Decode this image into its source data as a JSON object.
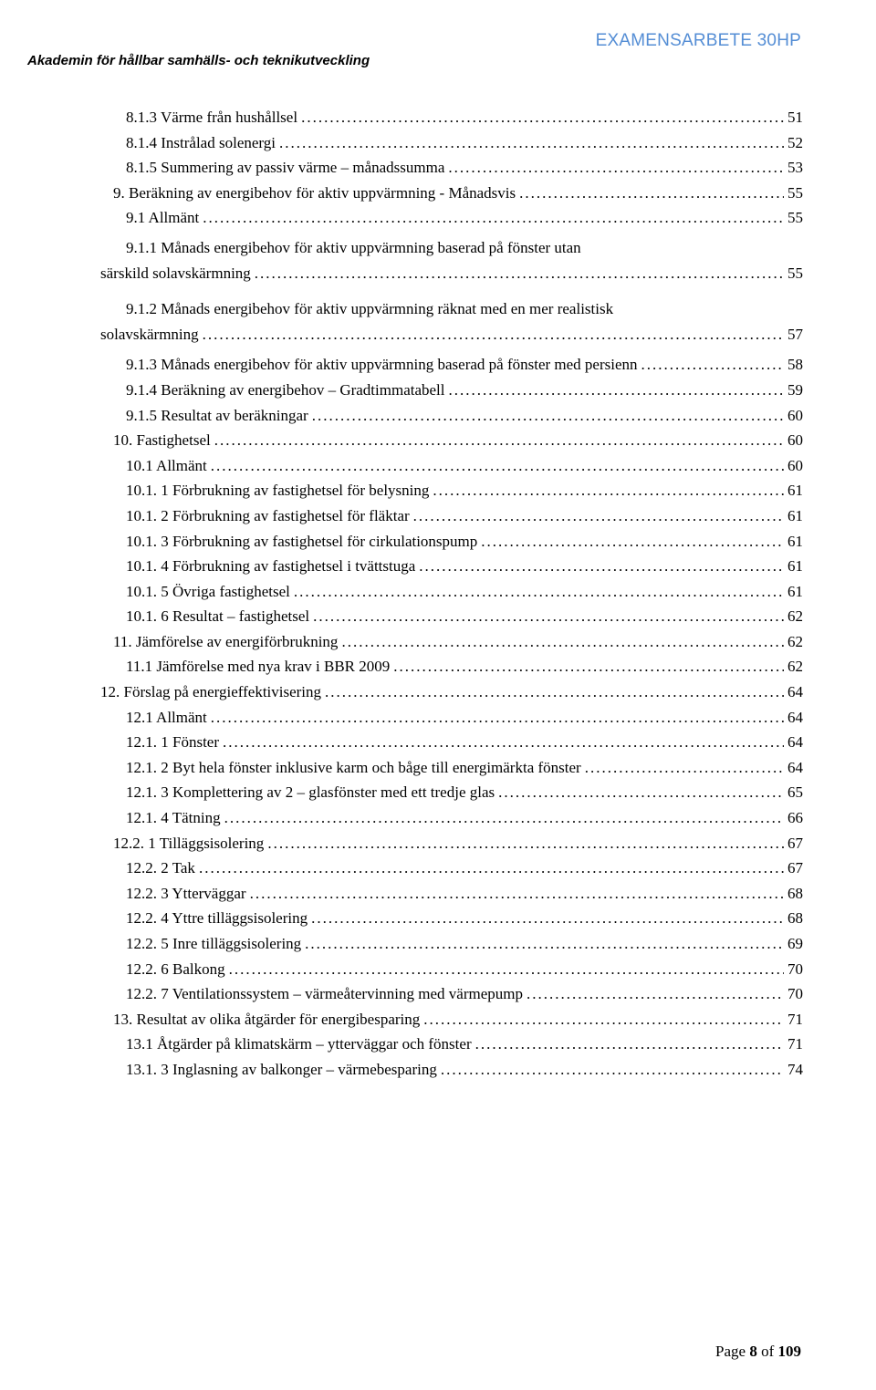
{
  "header": {
    "left": "Akademin för hållbar samhälls- och teknikutveckling",
    "right": "EXAMENSARBETE 30HP"
  },
  "toc": [
    {
      "indent": "ind-1",
      "label": "8.1.3 Värme från hushållsel",
      "page": "51"
    },
    {
      "indent": "ind-1",
      "label": "8.1.4 Instrålad solenergi",
      "page": "52"
    },
    {
      "indent": "ind-1",
      "label": "8.1.5 Summering av passiv värme – månadssumma",
      "page": "53"
    },
    {
      "indent": "ind-0c",
      "label": "9.    Beräkning av energibehov för aktiv uppvärmning - Månadsvis",
      "page": "55"
    },
    {
      "indent": "ind-1",
      "label": "9.1 Allmänt",
      "page": "55"
    },
    {
      "indent": "ind-1",
      "label": "9.1.1 Månads energibehov för aktiv uppvärmning baserad på fönster utan särskild solavskärmning",
      "page": "55",
      "wrap": true
    },
    {
      "indent": "ind-1",
      "label": "9.1.2 Månads energibehov för aktiv uppvärmning räknat med en mer realistisk solavskärmning",
      "page": "57",
      "wrap": true,
      "dropLeader": true
    },
    {
      "indent": "ind-1",
      "label": "9.1.3 Månads energibehov för aktiv uppvärmning baserad på fönster med persienn",
      "page": "58"
    },
    {
      "indent": "ind-1",
      "label": "9.1.4 Beräkning av energibehov – Gradtimmatabell",
      "page": "59"
    },
    {
      "indent": "ind-1",
      "label": "9.1.5 Resultat av beräkningar",
      "page": "60"
    },
    {
      "indent": "ind-0c",
      "label": "10.     Fastighetsel",
      "page": "60"
    },
    {
      "indent": "ind-1",
      "label": "10.1 Allmänt",
      "page": "60"
    },
    {
      "indent": "ind-1",
      "label": "10.1. 1 Förbrukning av fastighetsel för belysning",
      "page": "61"
    },
    {
      "indent": "ind-1",
      "label": "10.1. 2 Förbrukning av fastighetsel för fläktar",
      "page": "61"
    },
    {
      "indent": "ind-1",
      "label": "10.1. 3 Förbrukning av fastighetsel för cirkulationspump",
      "page": "61"
    },
    {
      "indent": "ind-1",
      "label": "10.1. 4 Förbrukning av fastighetsel i tvättstuga",
      "page": "61"
    },
    {
      "indent": "ind-1",
      "label": "10.1. 5 Övriga fastighetsel",
      "page": "61"
    },
    {
      "indent": "ind-1",
      "label": "10.1. 6 Resultat – fastighetsel",
      "page": "62"
    },
    {
      "indent": "ind-0c",
      "label": "11.     Jämförelse av energiförbrukning",
      "page": "62"
    },
    {
      "indent": "ind-1",
      "label": "11.1 Jämförelse med nya krav i BBR 2009",
      "page": "62"
    },
    {
      "indent": "ind-top",
      "label": "12.    Förslag på energieffektivisering",
      "page": "64"
    },
    {
      "indent": "ind-1",
      "label": "12.1 Allmänt",
      "page": "64"
    },
    {
      "indent": "ind-1",
      "label": "12.1. 1 Fönster",
      "page": "64"
    },
    {
      "indent": "ind-1",
      "label": "12.1. 2 Byt hela fönster inklusive karm och båge till energimärkta fönster",
      "page": "64"
    },
    {
      "indent": "ind-1",
      "label": "12.1. 3 Komplettering av 2 – glasfönster med ett tredje glas",
      "page": "65"
    },
    {
      "indent": "ind-1",
      "label": "12.1. 4 Tätning",
      "page": "66"
    },
    {
      "indent": "ind-0c",
      "label": "12.2. 1 Tilläggsisolering",
      "page": "67"
    },
    {
      "indent": "ind-1",
      "label": "12.2. 2 Tak",
      "page": "67"
    },
    {
      "indent": "ind-1",
      "label": "12.2. 3 Ytterväggar",
      "page": "68"
    },
    {
      "indent": "ind-1",
      "label": "12.2. 4 Yttre tilläggsisolering",
      "page": "68"
    },
    {
      "indent": "ind-1",
      "label": "12.2. 5 Inre tilläggsisolering",
      "page": "69"
    },
    {
      "indent": "ind-1",
      "label": "12.2. 6 Balkong",
      "page": "70"
    },
    {
      "indent": "ind-1",
      "label": "12.2. 7 Ventilationssystem – värmeåtervinning med värmepump",
      "page": "70"
    },
    {
      "indent": "ind-0c",
      "label": "13.     Resultat av olika åtgärder för energibesparing",
      "page": "71"
    },
    {
      "indent": "ind-1",
      "label": "13.1 Åtgärder på klimatskärm – ytterväggar och fönster",
      "page": "71"
    },
    {
      "indent": "ind-1",
      "label": "13.1. 3 Inglasning av balkonger – värmebesparing",
      "page": "74"
    }
  ],
  "footer": {
    "prefix": "Page ",
    "num": "8",
    "of": " of ",
    "total": "109"
  }
}
